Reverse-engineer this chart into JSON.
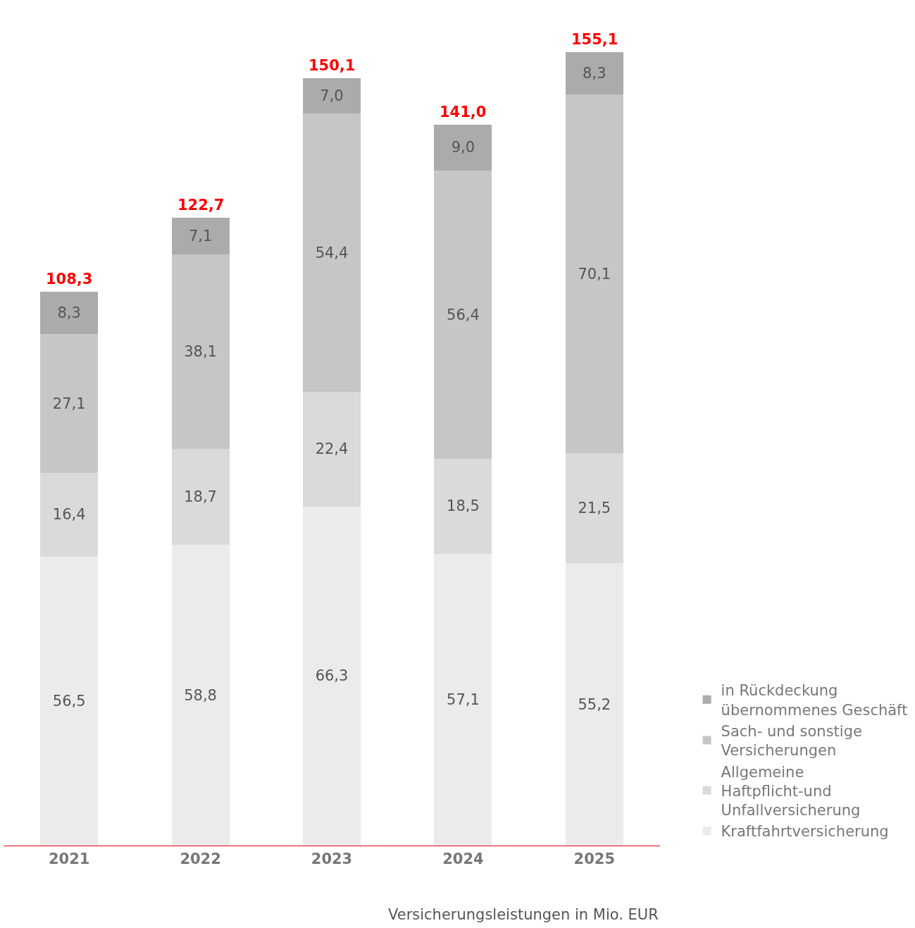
{
  "chart_data": {
    "type": "bar",
    "stacked": true,
    "xlabel": "Versicherungsleistungen in Mio. EUR",
    "categories": [
      "2021",
      "2022",
      "2023",
      "2024",
      "2025"
    ],
    "series": [
      {
        "name": "Kraftfahrtversicherung",
        "color": "#ebebeb",
        "values": [
          56.5,
          58.8,
          66.3,
          57.1,
          55.2
        ],
        "value_labels": [
          "56,5",
          "58,8",
          "66,3",
          "57,1",
          "55,2"
        ]
      },
      {
        "name": "Allgemeine Haftpflicht-und Unfallversicherung",
        "color": "#d9dada",
        "values": [
          16.4,
          18.7,
          22.4,
          18.5,
          21.5
        ],
        "value_labels": [
          "16,4",
          "18,7",
          "22,4",
          "18,5",
          "21,5"
        ]
      },
      {
        "name": "Sach- und sonstige Versicherungen",
        "color": "#c5c6c6",
        "values": [
          27.1,
          38.1,
          54.4,
          56.4,
          70.1
        ],
        "value_labels": [
          "27,1",
          "38,1",
          "54,4",
          "56,4",
          "70,1"
        ]
      },
      {
        "name": "in Rückdeckung übernommenes Geschäft",
        "color": "#a9abac",
        "values": [
          8.3,
          7.1,
          7.0,
          9.0,
          8.3
        ],
        "value_labels": [
          "8,3",
          "7,1",
          "7,0",
          "9,0",
          "8,3"
        ]
      }
    ],
    "totals": [
      "108,3",
      "122,7",
      "150,1",
      "141,0",
      "155,1"
    ],
    "legend": "bottom right"
  }
}
